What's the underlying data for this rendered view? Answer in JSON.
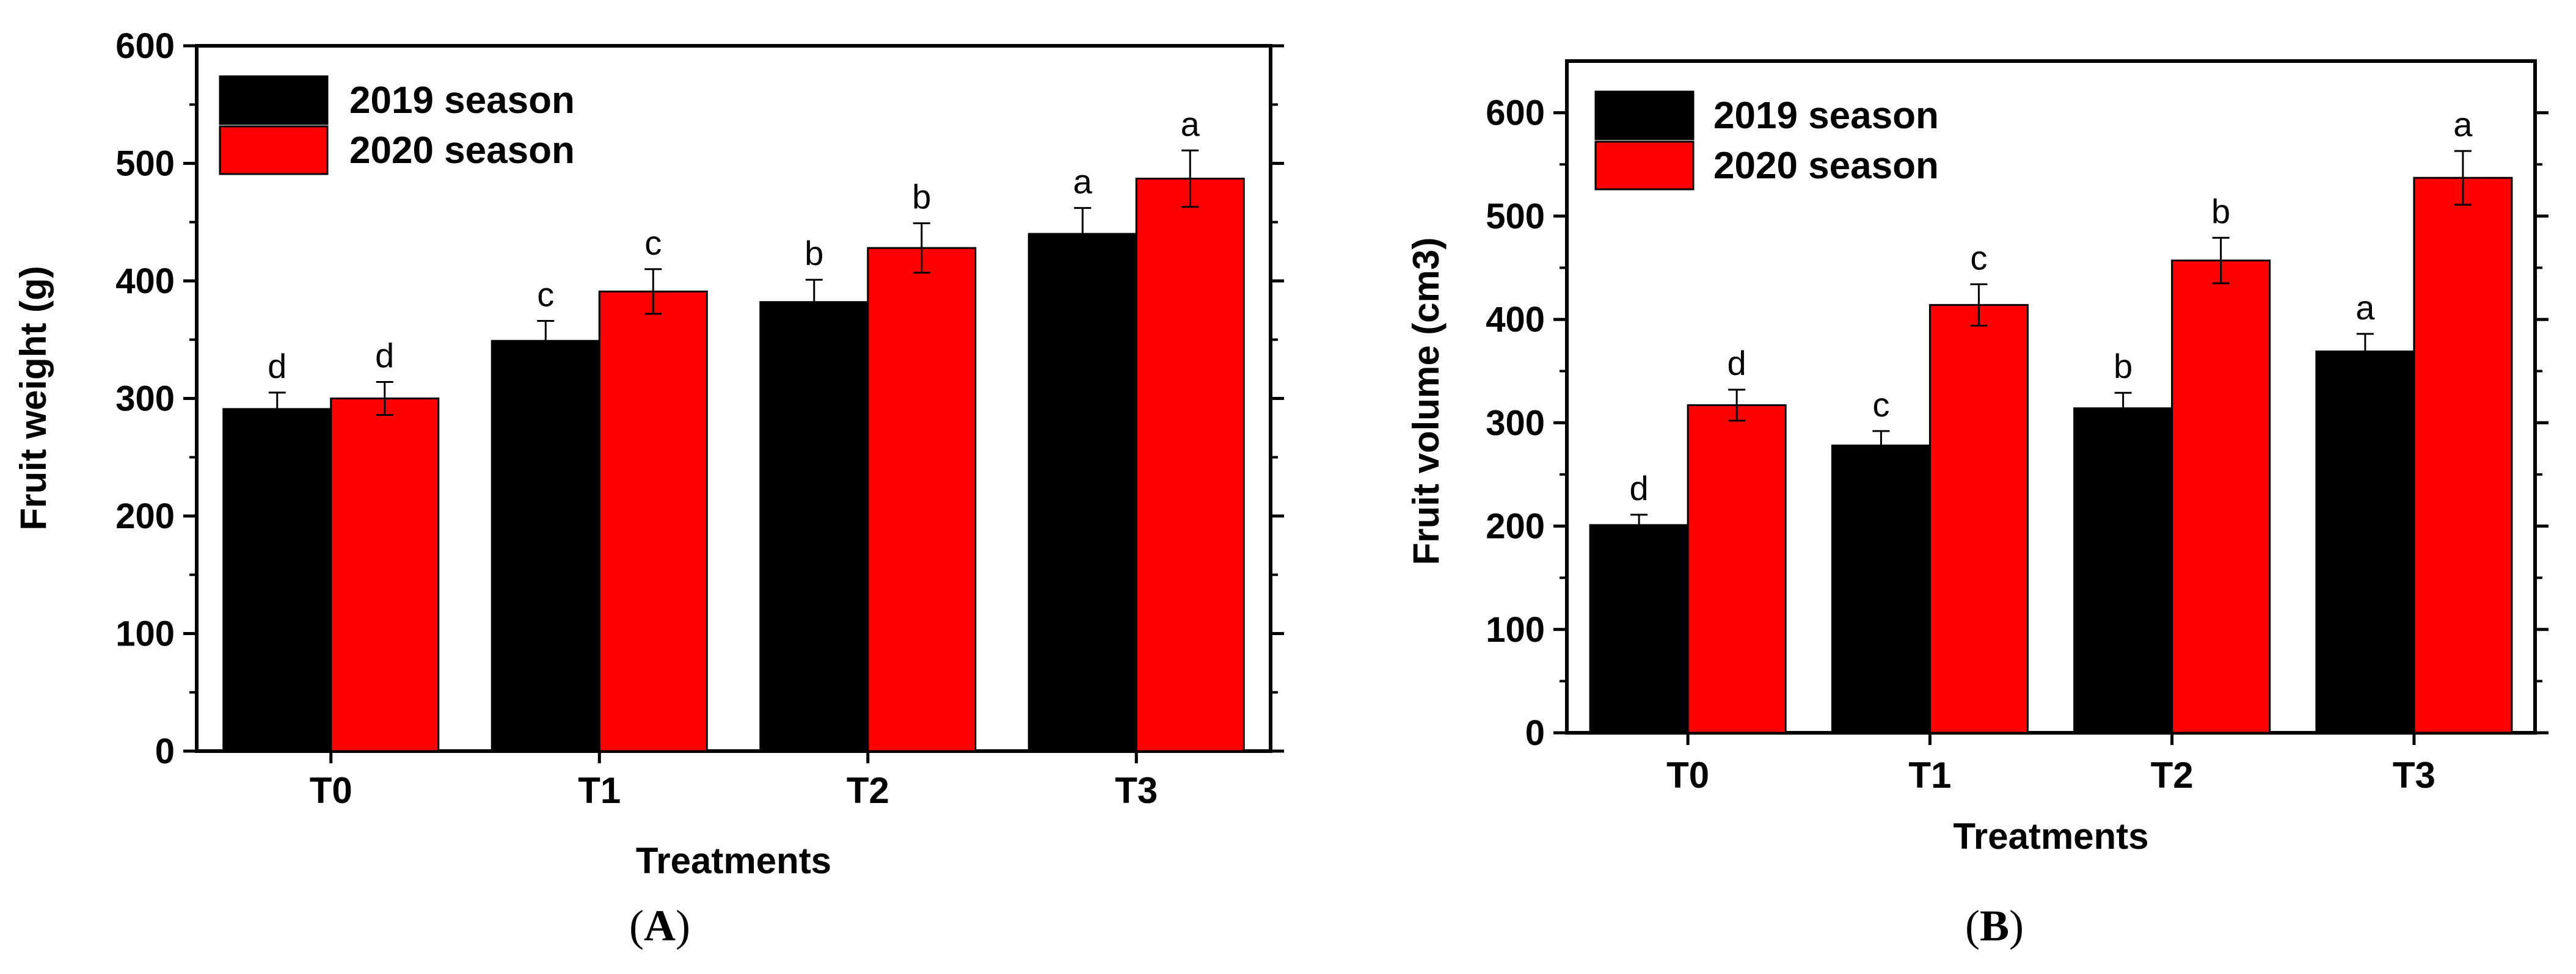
{
  "chart_data": [
    {
      "type": "bar",
      "panel": "A",
      "title": "",
      "xlabel": "Treatments",
      "ylabel": "Fruit weight (g)",
      "ylim": [
        0,
        600
      ],
      "yticks": [
        0,
        100,
        200,
        300,
        400,
        500,
        600
      ],
      "categories": [
        "T0",
        "T1",
        "T2",
        "T3"
      ],
      "legend_position": "top-left",
      "series": [
        {
          "name": "2019 season",
          "color": "#000000",
          "values": [
            291,
            349,
            382,
            440
          ],
          "errors": [
            14,
            17,
            19,
            22
          ],
          "labels": [
            "d",
            "c",
            "b",
            "a"
          ]
        },
        {
          "name": "2020 season",
          "color": "#ff0000",
          "values": [
            300,
            391,
            428,
            487
          ],
          "errors": [
            14,
            19,
            21,
            24
          ],
          "labels": [
            "d",
            "c",
            "b",
            "a"
          ]
        }
      ]
    },
    {
      "type": "bar",
      "panel": "B",
      "title": "",
      "xlabel": "Treatments",
      "ylabel": "Fruit volume (cm3)",
      "ylim": [
        0,
        650
      ],
      "yticks": [
        0,
        100,
        200,
        300,
        400,
        500,
        600
      ],
      "categories": [
        "T0",
        "T1",
        "T2",
        "T3"
      ],
      "legend_position": "top-left",
      "series": [
        {
          "name": "2019 season",
          "color": "#000000",
          "values": [
            201,
            278,
            314,
            369
          ],
          "errors": [
            10,
            14,
            15,
            17
          ],
          "labels": [
            "d",
            "c",
            "b",
            "a"
          ]
        },
        {
          "name": "2020 season",
          "color": "#ff0000",
          "values": [
            317,
            414,
            457,
            537
          ],
          "errors": [
            15,
            20,
            22,
            26
          ],
          "labels": [
            "d",
            "c",
            "b",
            "a"
          ]
        }
      ]
    }
  ],
  "panel_tags": [
    "A",
    "B"
  ]
}
